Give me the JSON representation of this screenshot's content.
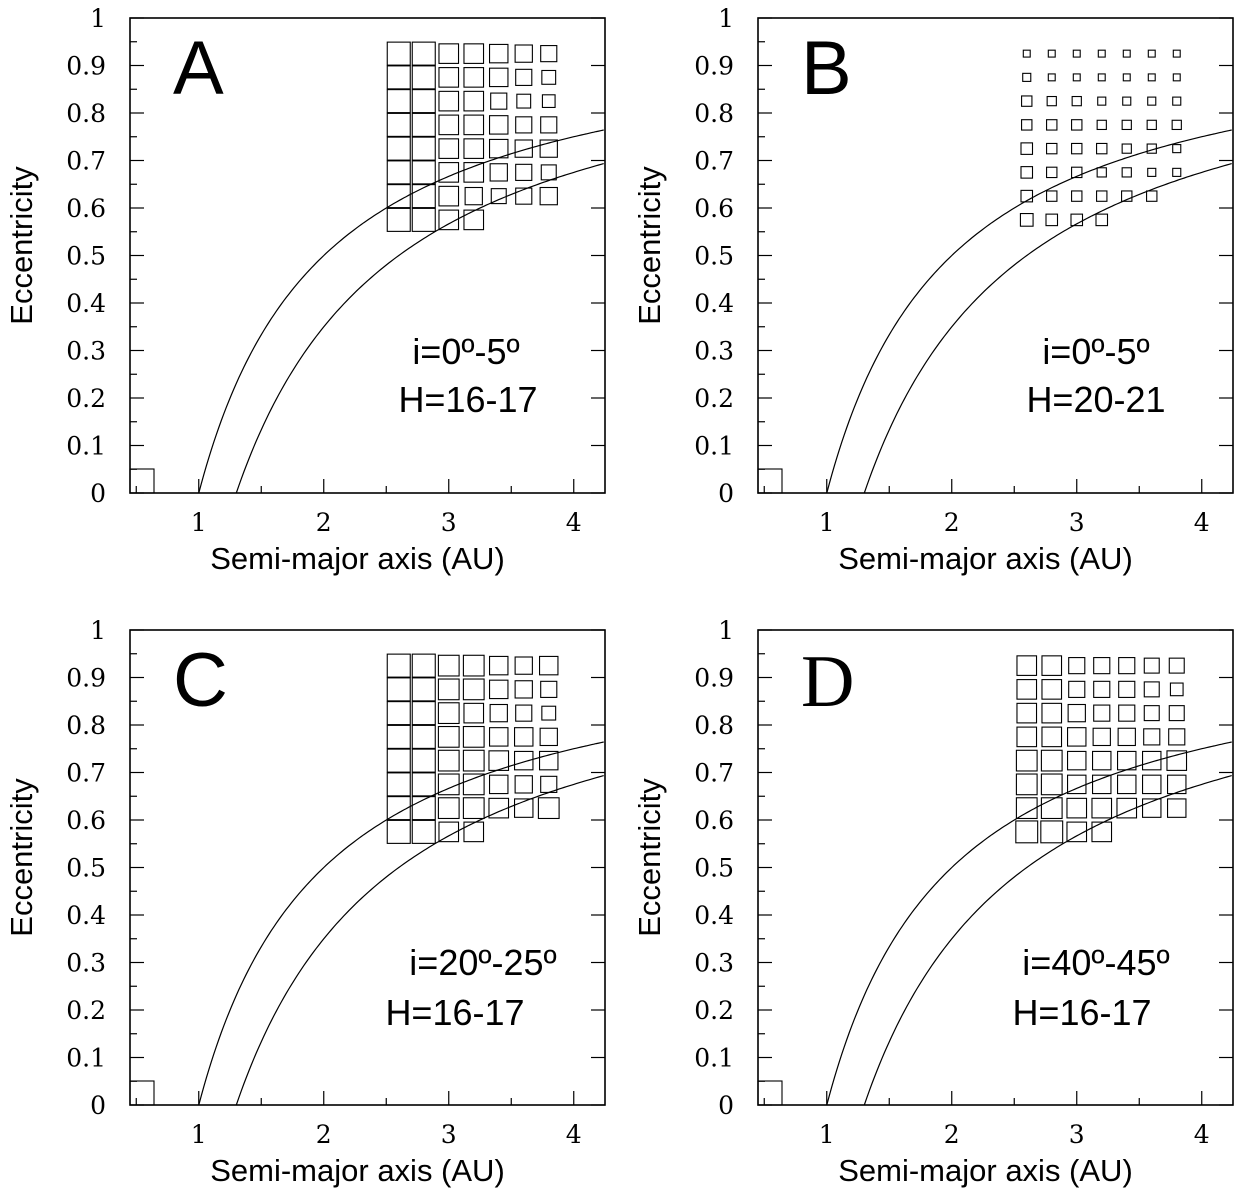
{
  "chart_data": [
    {
      "type": "scatter",
      "panel_label": "A",
      "xlabel": "Semi-major axis (AU)",
      "ylabel": "Eccentricity",
      "xlim": [
        0.45,
        4.25
      ],
      "ylim": [
        0,
        1
      ],
      "x_ticks": [
        "1",
        "2",
        "3",
        "4"
      ],
      "y_ticks": [
        "0",
        "0.1",
        "0.2",
        "0.3",
        "0.4",
        "0.5",
        "0.6",
        "0.7",
        "0.8",
        "0.9",
        "1"
      ],
      "annotations": [
        "i=0º-5º",
        "H=16-17"
      ],
      "grid_x": [
        2.6,
        2.8,
        3.0,
        3.2,
        3.4,
        3.6,
        3.8
      ],
      "grid_y": [
        0.925,
        0.875,
        0.825,
        0.775,
        0.725,
        0.675,
        0.625,
        0.575
      ],
      "box_size_relative": [
        [
          1.0,
          1.0,
          0.85,
          0.85,
          0.8,
          0.75,
          0.7
        ],
        [
          1.0,
          1.0,
          0.85,
          0.85,
          0.8,
          0.7,
          0.6
        ],
        [
          1.0,
          1.0,
          0.85,
          0.85,
          0.7,
          0.6,
          0.55
        ],
        [
          1.0,
          1.0,
          0.85,
          0.85,
          0.8,
          0.7,
          0.7
        ],
        [
          1.0,
          1.0,
          0.85,
          0.85,
          0.8,
          0.75,
          0.75
        ],
        [
          1.0,
          1.0,
          0.85,
          0.85,
          0.75,
          0.7,
          0.65
        ],
        [
          1.0,
          1.0,
          0.85,
          0.75,
          0.65,
          0.7,
          0.75
        ],
        [
          1.0,
          1.0,
          0.85,
          0.85,
          0,
          0,
          0
        ]
      ],
      "box_scale": 1.0
    },
    {
      "type": "scatter",
      "panel_label": "B",
      "xlabel": "Semi-major axis (AU)",
      "ylabel": "Eccentricity",
      "xlim": [
        0.45,
        4.25
      ],
      "ylim": [
        0,
        1
      ],
      "x_ticks": [
        "1",
        "2",
        "3",
        "4"
      ],
      "y_ticks": [
        "0",
        "0.1",
        "0.2",
        "0.3",
        "0.4",
        "0.5",
        "0.6",
        "0.7",
        "0.8",
        "0.9",
        "1"
      ],
      "annotations": [
        "i=0º-5º",
        "H=20-21"
      ],
      "grid_x": [
        2.6,
        2.8,
        3.0,
        3.2,
        3.4,
        3.6,
        3.8
      ],
      "grid_y": [
        0.925,
        0.875,
        0.825,
        0.775,
        0.725,
        0.675,
        0.625,
        0.575
      ],
      "box_size_relative": [
        [
          0.3,
          0.3,
          0.3,
          0.3,
          0.3,
          0.3,
          0.3
        ],
        [
          0.35,
          0.3,
          0.3,
          0.3,
          0.3,
          0.3,
          0.3
        ],
        [
          0.45,
          0.4,
          0.4,
          0.35,
          0.35,
          0.35,
          0.35
        ],
        [
          0.45,
          0.45,
          0.45,
          0.4,
          0.4,
          0.4,
          0.4
        ],
        [
          0.5,
          0.45,
          0.45,
          0.45,
          0.4,
          0.4,
          0.35
        ],
        [
          0.5,
          0.45,
          0.45,
          0.4,
          0.4,
          0.35,
          0.35
        ],
        [
          0.5,
          0.45,
          0.45,
          0.45,
          0.45,
          0.45,
          0
        ],
        [
          0.55,
          0.5,
          0.5,
          0.5,
          0,
          0,
          0
        ]
      ],
      "box_scale": 1.0
    },
    {
      "type": "scatter",
      "panel_label": "C",
      "xlabel": "Semi-major axis (AU)",
      "ylabel": "Eccentricity",
      "xlim": [
        0.45,
        4.25
      ],
      "ylim": [
        0,
        1
      ],
      "x_ticks": [
        "1",
        "2",
        "3",
        "4"
      ],
      "y_ticks": [
        "0",
        "0.1",
        "0.2",
        "0.3",
        "0.4",
        "0.5",
        "0.6",
        "0.7",
        "0.8",
        "0.9",
        "1"
      ],
      "annotations": [
        "i=20º-25º",
        "H=16-17"
      ],
      "grid_x": [
        2.6,
        2.8,
        3.0,
        3.2,
        3.4,
        3.6,
        3.8
      ],
      "grid_y": [
        0.925,
        0.875,
        0.825,
        0.775,
        0.725,
        0.675,
        0.625,
        0.575
      ],
      "box_size_relative": [
        [
          1.0,
          1.0,
          0.9,
          0.9,
          0.8,
          0.75,
          0.8
        ],
        [
          1.0,
          1.0,
          0.9,
          0.9,
          0.8,
          0.75,
          0.7
        ],
        [
          1.0,
          1.0,
          0.9,
          0.85,
          0.75,
          0.7,
          0.6
        ],
        [
          1.0,
          1.0,
          0.9,
          0.9,
          0.8,
          0.8,
          0.75
        ],
        [
          1.0,
          1.0,
          0.9,
          0.9,
          0.85,
          0.8,
          0.8
        ],
        [
          1.0,
          1.0,
          0.9,
          0.9,
          0.8,
          0.75,
          0.7
        ],
        [
          1.0,
          1.0,
          0.9,
          0.9,
          0.85,
          0.8,
          0.9
        ],
        [
          1.0,
          1.0,
          0.85,
          0.85,
          0,
          0,
          0
        ]
      ],
      "box_scale": 1.0
    },
    {
      "type": "scatter",
      "panel_label": "D",
      "xlabel": "Semi-major axis (AU)",
      "ylabel": "Eccentricity",
      "xlim": [
        0.45,
        4.25
      ],
      "ylim": [
        0,
        1
      ],
      "x_ticks": [
        "1",
        "2",
        "3",
        "4"
      ],
      "y_ticks": [
        "0",
        "0.1",
        "0.2",
        "0.3",
        "0.4",
        "0.5",
        "0.6",
        "0.7",
        "0.8",
        "0.9",
        "1"
      ],
      "annotations": [
        "i=40º-45º",
        "H=16-17"
      ],
      "grid_x": [
        2.6,
        2.8,
        3.0,
        3.2,
        3.4,
        3.6,
        3.8
      ],
      "grid_y": [
        0.925,
        0.875,
        0.825,
        0.775,
        0.725,
        0.675,
        0.625,
        0.575
      ],
      "box_size_relative": [
        [
          0.85,
          0.85,
          0.7,
          0.7,
          0.7,
          0.65,
          0.65
        ],
        [
          0.85,
          0.85,
          0.7,
          0.7,
          0.7,
          0.65,
          0.55
        ],
        [
          0.85,
          0.85,
          0.75,
          0.7,
          0.7,
          0.65,
          0.65
        ],
        [
          0.85,
          0.85,
          0.8,
          0.75,
          0.75,
          0.7,
          0.7
        ],
        [
          0.9,
          0.9,
          0.8,
          0.8,
          0.8,
          0.8,
          0.85
        ],
        [
          0.9,
          0.9,
          0.8,
          0.8,
          0.8,
          0.8,
          0.8
        ],
        [
          0.9,
          0.9,
          0.85,
          0.85,
          0.85,
          0.8,
          0.8
        ],
        [
          0.95,
          0.95,
          0.85,
          0.85,
          0,
          0,
          0
        ]
      ],
      "box_scale": 1.0
    }
  ]
}
